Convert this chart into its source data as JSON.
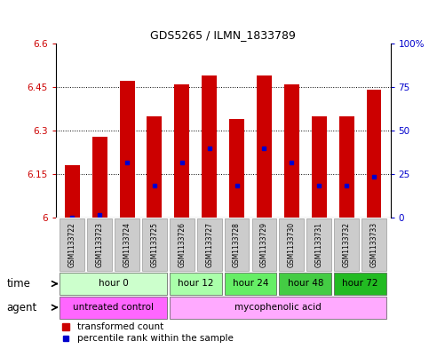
{
  "title": "GDS5265 / ILMN_1833789",
  "samples": [
    "GSM1133722",
    "GSM1133723",
    "GSM1133724",
    "GSM1133725",
    "GSM1133726",
    "GSM1133727",
    "GSM1133728",
    "GSM1133729",
    "GSM1133730",
    "GSM1133731",
    "GSM1133732",
    "GSM1133733"
  ],
  "bar_tops": [
    6.18,
    6.28,
    6.47,
    6.35,
    6.46,
    6.49,
    6.34,
    6.49,
    6.46,
    6.35,
    6.35,
    6.44
  ],
  "bar_bottom": 6.0,
  "blue_dot_values": [
    6.0,
    6.01,
    6.19,
    6.11,
    6.19,
    6.24,
    6.11,
    6.24,
    6.19,
    6.11,
    6.11,
    6.14
  ],
  "ylim": [
    6.0,
    6.6
  ],
  "yticks_left": [
    6.0,
    6.15,
    6.3,
    6.45,
    6.6
  ],
  "ytick_labels_left": [
    "6",
    "6.15",
    "6.3",
    "6.45",
    "6.6"
  ],
  "yticks_right": [
    0,
    25,
    50,
    75,
    100
  ],
  "ytick_labels_right": [
    "0",
    "25",
    "50",
    "75",
    "100%"
  ],
  "bar_color": "#cc0000",
  "blue_dot_color": "#0000cc",
  "time_groups": [
    {
      "label": "hour 0",
      "start": 0,
      "end": 3,
      "color": "#ccffcc"
    },
    {
      "label": "hour 12",
      "start": 4,
      "end": 5,
      "color": "#aaffaa"
    },
    {
      "label": "hour 24",
      "start": 6,
      "end": 7,
      "color": "#66ee66"
    },
    {
      "label": "hour 48",
      "start": 8,
      "end": 9,
      "color": "#44cc44"
    },
    {
      "label": "hour 72",
      "start": 10,
      "end": 11,
      "color": "#22bb22"
    }
  ],
  "agent_groups": [
    {
      "label": "untreated control",
      "start": 0,
      "end": 3,
      "color": "#ff66ff"
    },
    {
      "label": "mycophenolic acid",
      "start": 4,
      "end": 11,
      "color": "#ffaaff"
    }
  ],
  "legend_red_label": "transformed count",
  "legend_blue_label": "percentile rank within the sample",
  "time_label": "time",
  "agent_label": "agent",
  "left_tick_color": "#cc0000",
  "right_tick_color": "#0000cc",
  "sample_box_color": "#cccccc",
  "sample_box_edge": "#999999"
}
